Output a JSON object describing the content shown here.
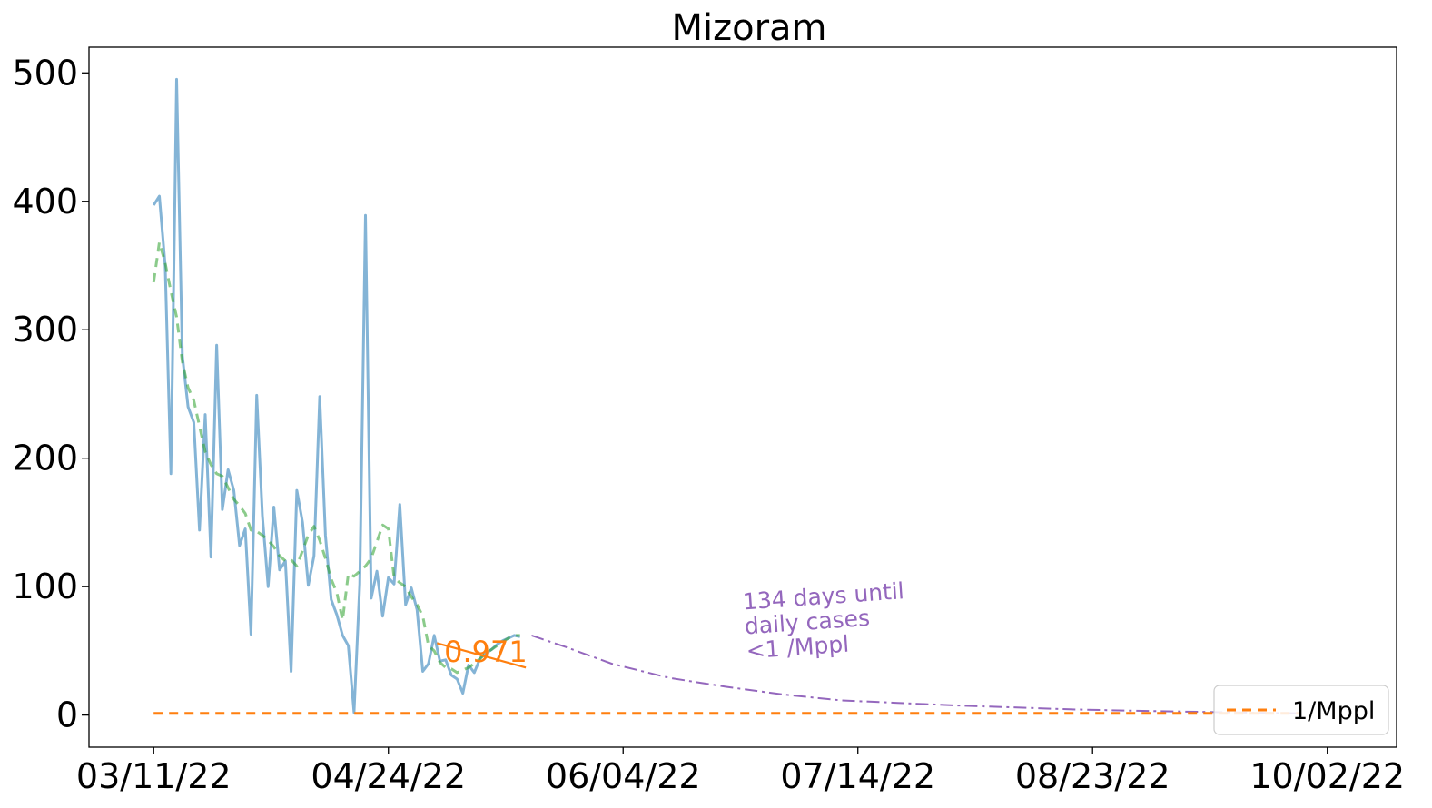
{
  "chart_data": {
    "type": "line",
    "title": "Mizoram",
    "xlabel": "",
    "ylabel": "",
    "x_ticks": [
      "03/11/22",
      "04/24/22",
      "06/04/22",
      "07/14/22",
      "08/23/22",
      "10/02/22"
    ],
    "y_ticks": [
      0,
      100,
      200,
      300,
      400,
      500
    ],
    "xlim_days_from_first_tick": [
      -11.3,
      217.1
    ],
    "ylim": [
      -25,
      520
    ],
    "series": [
      {
        "name": "",
        "style": "solid",
        "color": "#1f77b4",
        "x_days": [
          0,
          1,
          2,
          3,
          4,
          5,
          6,
          7,
          8,
          9,
          10,
          11,
          12,
          13,
          14,
          15,
          16,
          17,
          18,
          19,
          20,
          21,
          22,
          23,
          24,
          25,
          26,
          27,
          28,
          29,
          30,
          31,
          32,
          33,
          34,
          35,
          36,
          37,
          38,
          39,
          40,
          41,
          42,
          43,
          44,
          45,
          46,
          47,
          48,
          49,
          50,
          51,
          52,
          53,
          54,
          55,
          56,
          57,
          58,
          59,
          60,
          61,
          62,
          63,
          64
        ],
        "values": [
          397,
          404,
          350,
          188,
          495,
          280,
          240,
          228,
          144,
          234,
          123,
          288,
          160,
          191,
          175,
          132,
          145,
          63,
          249,
          155,
          100,
          162,
          113,
          120,
          34,
          175,
          150,
          101,
          124,
          248,
          140,
          90,
          78,
          62,
          54,
          2,
          102,
          389,
          91,
          112,
          77,
          107,
          102,
          164,
          86,
          99,
          82,
          34,
          40,
          62,
          42,
          43,
          31,
          28,
          17,
          39,
          33,
          44,
          48,
          51,
          55,
          58,
          60,
          62,
          61
        ]
      },
      {
        "name": "",
        "style": "dashed",
        "color": "#2ca02c",
        "x_days": [
          0,
          1,
          2,
          3,
          4,
          5,
          6,
          7,
          8,
          9,
          10,
          11,
          12,
          13,
          14,
          15,
          16,
          17,
          18,
          19,
          20,
          21,
          22,
          23,
          24,
          25,
          26,
          27,
          28,
          29,
          30,
          31,
          32,
          33,
          34,
          35,
          36,
          37,
          38,
          39,
          40,
          41,
          42,
          43,
          44,
          45,
          46,
          47,
          48,
          49,
          50,
          51,
          52,
          53,
          54,
          55,
          56,
          57,
          58,
          59,
          60,
          61,
          62,
          63,
          64
        ],
        "values": [
          337,
          368,
          352,
          330,
          310,
          275,
          255,
          245,
          225,
          205,
          195,
          188,
          186,
          177,
          168,
          163,
          157,
          144,
          143,
          140,
          136,
          131,
          124,
          120,
          121,
          116,
          128,
          140,
          147,
          136,
          122,
          106,
          95,
          74,
          110,
          108,
          112,
          116,
          122,
          135,
          148,
          145,
          107,
          103,
          100,
          92,
          86,
          77,
          54,
          50,
          41,
          37,
          36,
          33,
          35,
          37,
          40,
          44,
          48,
          51,
          54,
          57,
          60,
          62,
          62
        ]
      },
      {
        "name": "",
        "style": "solid",
        "color": "#ff7f0e",
        "x_days": [
          49.5,
          65
        ],
        "values": [
          56,
          37
        ]
      },
      {
        "name": "",
        "style": "dashdot",
        "color": "#9467bd",
        "x_days": [
          66,
          72,
          80,
          90,
          100,
          110,
          120,
          130,
          140,
          150,
          160,
          170,
          180,
          190,
          200
        ],
        "values": [
          62,
          53,
          40,
          29,
          22,
          16,
          11.5,
          9.5,
          7.5,
          6,
          4.5,
          3.5,
          2.7,
          2,
          1.4
        ]
      },
      {
        "name": "1/Mppl",
        "style": "dashed",
        "color": "#ff7f0e",
        "x_days": [
          0,
          200
        ],
        "values": [
          1.3,
          1.3
        ]
      }
    ],
    "annotations": [
      {
        "text": "0.971",
        "x_days": 58,
        "y": 50,
        "color": "#ff7f0e"
      },
      {
        "text_lines": [
          "134 days until",
          "daily cases",
          "<1 /Mppl"
        ],
        "x_days": 103,
        "y": 75,
        "color": "#9467bd",
        "rotation_deg": -4
      }
    ],
    "legend": {
      "position": "lower-right",
      "entries": [
        "1/Mppl"
      ]
    },
    "grid": false
  }
}
